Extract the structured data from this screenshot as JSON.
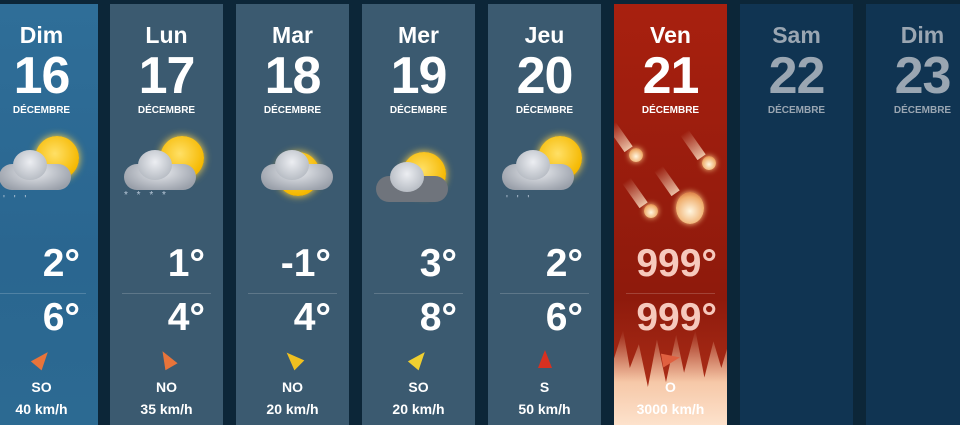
{
  "month": "DÉCEMBRE",
  "days": [
    {
      "dow": "Dim",
      "day": "16",
      "icon": "sun-cloud-rain-icon",
      "low": "2°",
      "high": "6°",
      "wind_dir": "SO",
      "wind_speed": "40 km/h",
      "arrow_color": "#e8743a",
      "arrow_rotation_deg": 40
    },
    {
      "dow": "Lun",
      "day": "17",
      "icon": "sun-cloud-snow-icon",
      "low": "1°",
      "high": "4°",
      "wind_dir": "NO",
      "wind_speed": "35 km/h",
      "arrow_color": "#e8743a",
      "arrow_rotation_deg": -30
    },
    {
      "dow": "Mar",
      "day": "18",
      "icon": "sun-cloud-icon",
      "low": "-1°",
      "high": "4°",
      "wind_dir": "NO",
      "wind_speed": "20 km/h",
      "arrow_color": "#f0c020",
      "arrow_rotation_deg": -45
    },
    {
      "dow": "Mer",
      "day": "19",
      "icon": "sun-cloud-icon",
      "low": "3°",
      "high": "8°",
      "wind_dir": "SO",
      "wind_speed": "20 km/h",
      "arrow_color": "#f0d030",
      "arrow_rotation_deg": 40
    },
    {
      "dow": "Jeu",
      "day": "20",
      "icon": "sun-cloud-rain-icon",
      "low": "2°",
      "high": "6°",
      "wind_dir": "S",
      "wind_speed": "50 km/h",
      "arrow_color": "#d83020",
      "arrow_rotation_deg": 0
    },
    {
      "dow": "Ven",
      "day": "21",
      "icon": "meteor-fire-icon",
      "low": "999°",
      "high": "999°",
      "wind_dir": "O",
      "wind_speed": "3000 km/h",
      "arrow_color": "#e06040",
      "arrow_rotation_deg": 80
    },
    {
      "dow": "Sam",
      "day": "22"
    },
    {
      "dow": "Dim",
      "day": "23"
    }
  ]
}
